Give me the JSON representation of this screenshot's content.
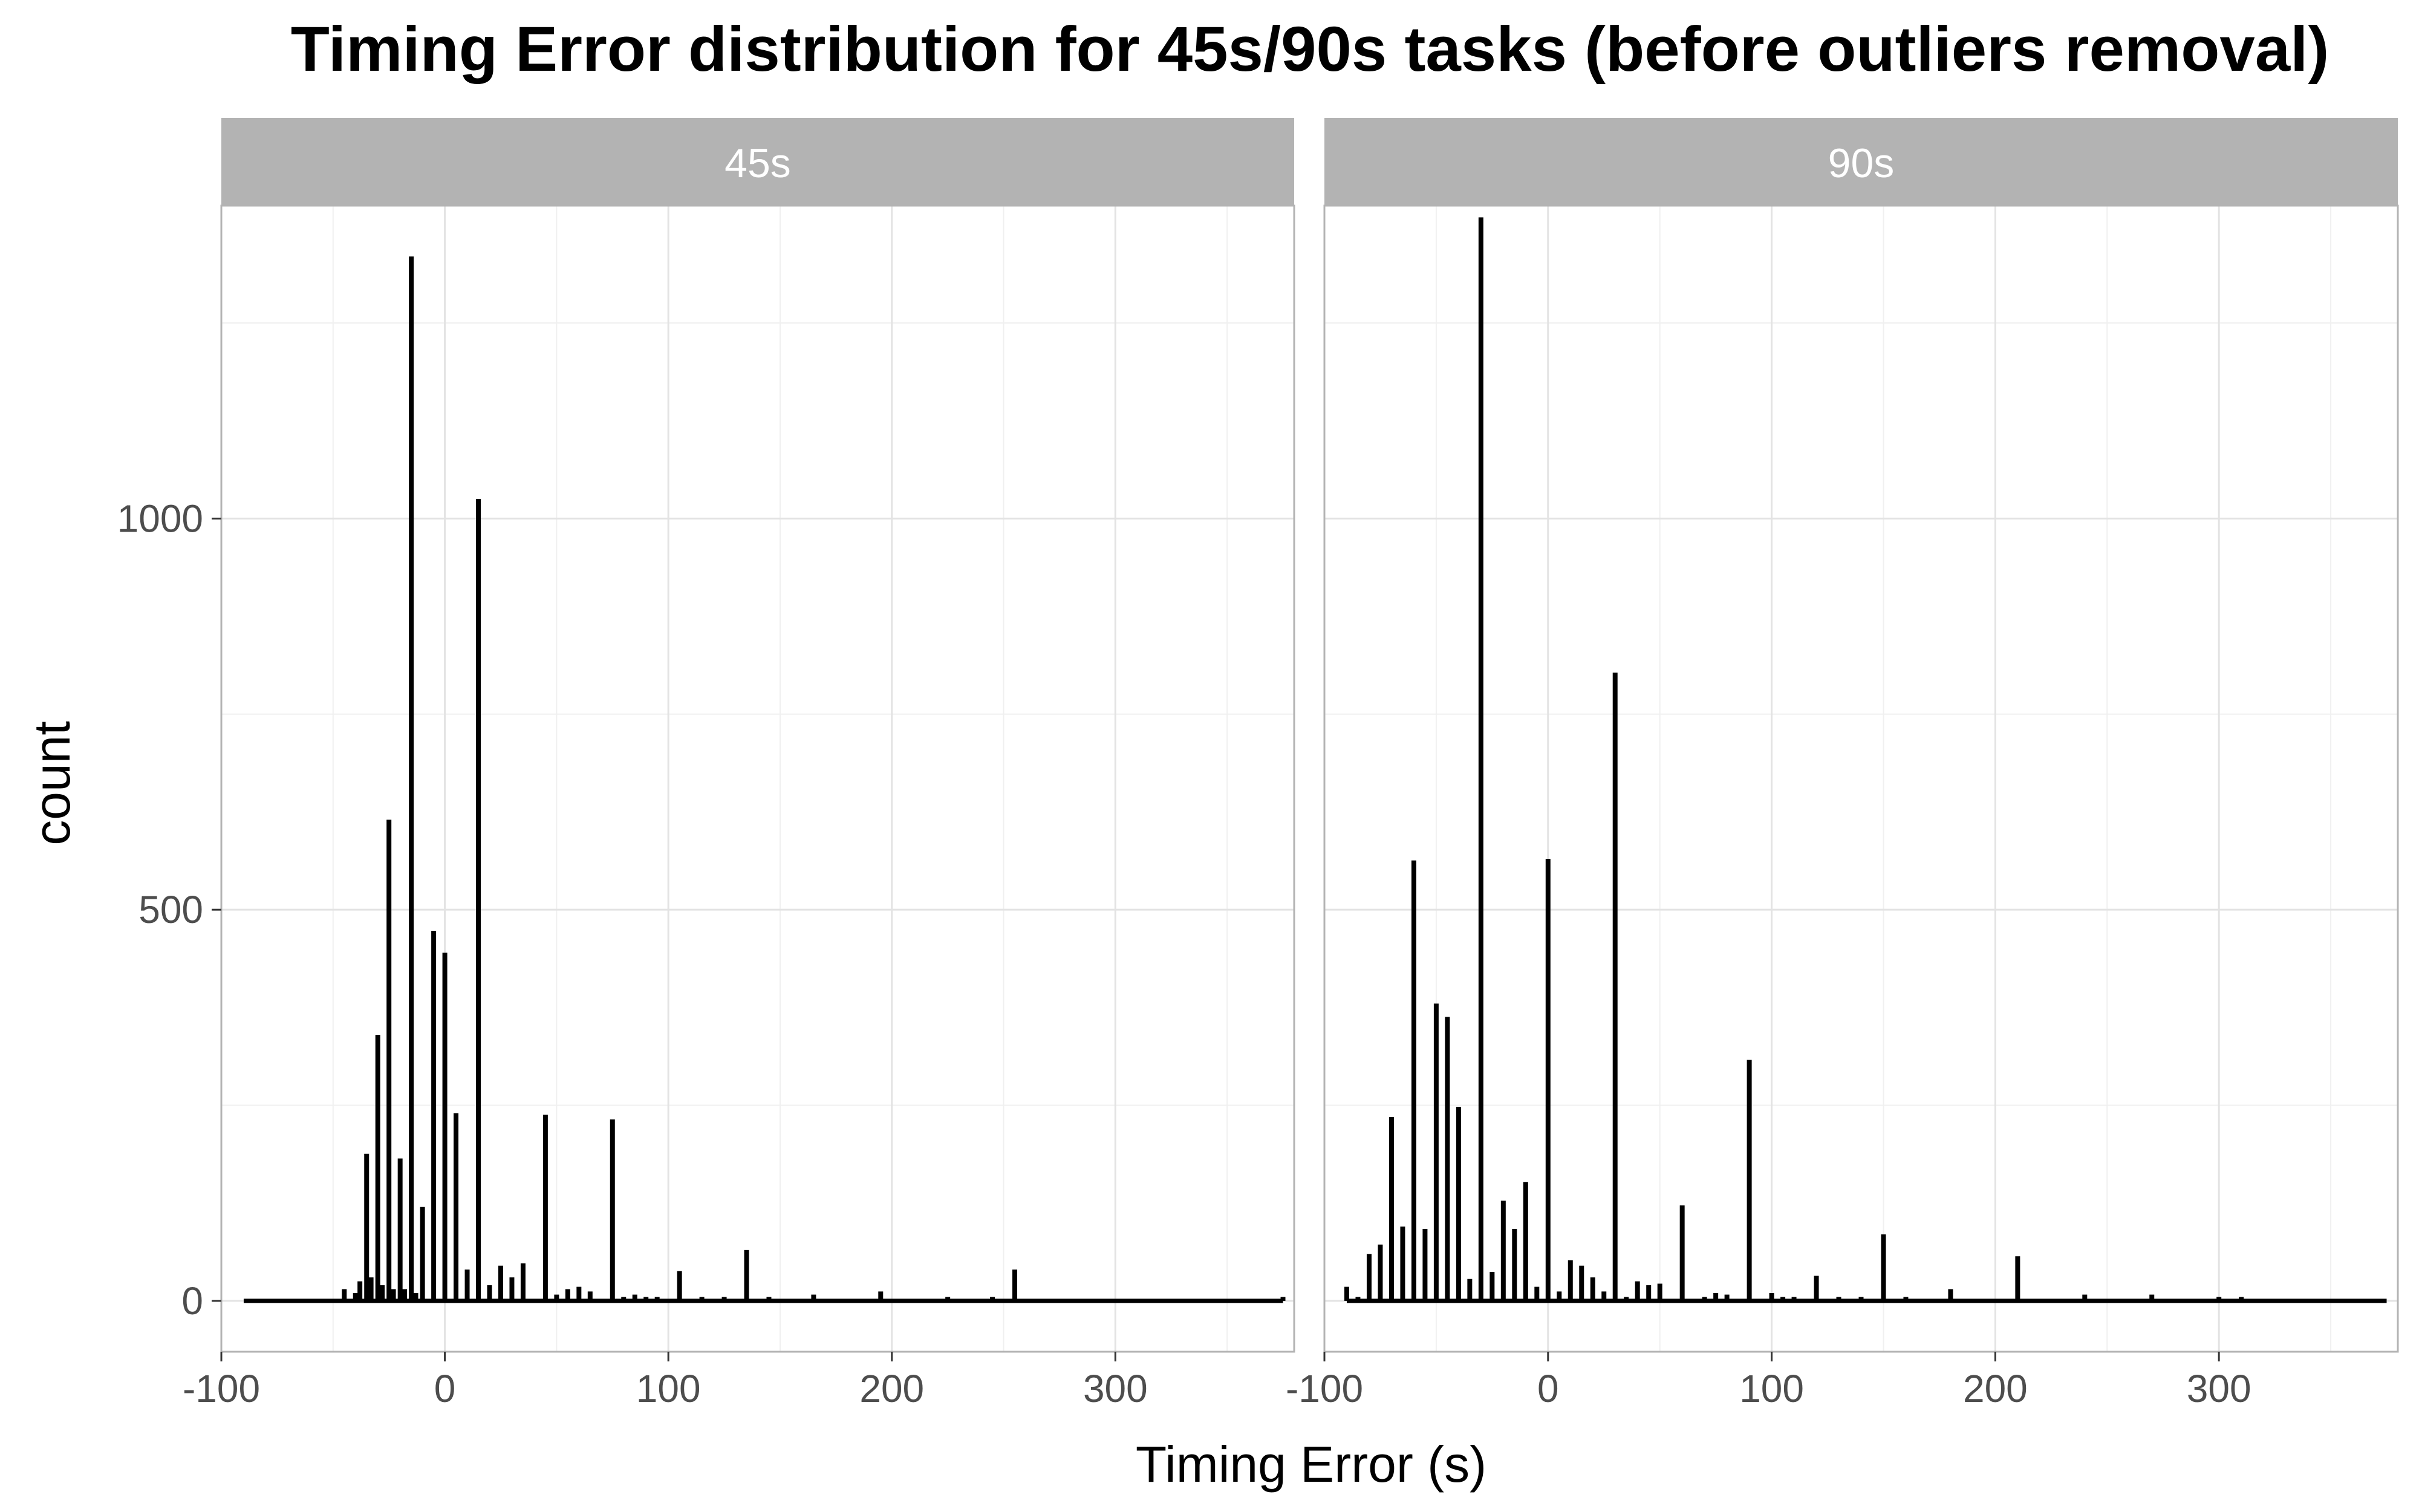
{
  "chart_data": {
    "type": "bar",
    "title": "Timing Error distribution for 45s/90s tasks (before outliers removal)",
    "xlabel": "Timing Error (s)",
    "ylabel": "count",
    "xlim": [
      -100,
      380
    ],
    "ylim": [
      -65,
      1400
    ],
    "x_ticks": [
      -100,
      0,
      100,
      200,
      300
    ],
    "x_tick_labels": [
      "-100",
      "0",
      "100",
      "200",
      "300"
    ],
    "y_ticks": [
      0,
      500,
      1000
    ],
    "y_tick_labels": [
      "0",
      "500",
      "1000"
    ],
    "grid": true,
    "baseline_range": [
      -90,
      375
    ],
    "facets": [
      {
        "label": "45s",
        "bars": [
          {
            "x": -45,
            "y": 15
          },
          {
            "x": -40,
            "y": 10
          },
          {
            "x": -38,
            "y": 25
          },
          {
            "x": -35,
            "y": 188
          },
          {
            "x": -33,
            "y": 30
          },
          {
            "x": -30,
            "y": 340
          },
          {
            "x": -28,
            "y": 20
          },
          {
            "x": -25,
            "y": 615
          },
          {
            "x": -23,
            "y": 15
          },
          {
            "x": -20,
            "y": 182
          },
          {
            "x": -18,
            "y": 15
          },
          {
            "x": -15,
            "y": 1335
          },
          {
            "x": -13,
            "y": 10
          },
          {
            "x": -10,
            "y": 120
          },
          {
            "x": -5,
            "y": 473
          },
          {
            "x": 0,
            "y": 445
          },
          {
            "x": 5,
            "y": 240
          },
          {
            "x": 10,
            "y": 40
          },
          {
            "x": 15,
            "y": 1025
          },
          {
            "x": 20,
            "y": 20
          },
          {
            "x": 25,
            "y": 45
          },
          {
            "x": 30,
            "y": 30
          },
          {
            "x": 35,
            "y": 48
          },
          {
            "x": 45,
            "y": 238
          },
          {
            "x": 50,
            "y": 8
          },
          {
            "x": 55,
            "y": 15
          },
          {
            "x": 60,
            "y": 18
          },
          {
            "x": 65,
            "y": 12
          },
          {
            "x": 75,
            "y": 232
          },
          {
            "x": 80,
            "y": 5
          },
          {
            "x": 85,
            "y": 8
          },
          {
            "x": 90,
            "y": 5
          },
          {
            "x": 95,
            "y": 5
          },
          {
            "x": 105,
            "y": 38
          },
          {
            "x": 115,
            "y": 5
          },
          {
            "x": 125,
            "y": 5
          },
          {
            "x": 135,
            "y": 65
          },
          {
            "x": 145,
            "y": 5
          },
          {
            "x": 165,
            "y": 8
          },
          {
            "x": 195,
            "y": 12
          },
          {
            "x": 225,
            "y": 5
          },
          {
            "x": 245,
            "y": 5
          },
          {
            "x": 255,
            "y": 40
          },
          {
            "x": 375,
            "y": 5
          }
        ]
      },
      {
        "label": "90s",
        "bars": [
          {
            "x": -90,
            "y": 18
          },
          {
            "x": -85,
            "y": 5
          },
          {
            "x": -80,
            "y": 60
          },
          {
            "x": -75,
            "y": 72
          },
          {
            "x": -70,
            "y": 235
          },
          {
            "x": -65,
            "y": 95
          },
          {
            "x": -60,
            "y": 563
          },
          {
            "x": -55,
            "y": 92
          },
          {
            "x": -50,
            "y": 380
          },
          {
            "x": -45,
            "y": 363
          },
          {
            "x": -40,
            "y": 248
          },
          {
            "x": -35,
            "y": 28
          },
          {
            "x": -30,
            "y": 1385
          },
          {
            "x": -25,
            "y": 37
          },
          {
            "x": -20,
            "y": 128
          },
          {
            "x": -15,
            "y": 92
          },
          {
            "x": -10,
            "y": 152
          },
          {
            "x": -5,
            "y": 18
          },
          {
            "x": 0,
            "y": 565
          },
          {
            "x": 5,
            "y": 12
          },
          {
            "x": 10,
            "y": 52
          },
          {
            "x": 15,
            "y": 45
          },
          {
            "x": 20,
            "y": 30
          },
          {
            "x": 25,
            "y": 12
          },
          {
            "x": 30,
            "y": 803
          },
          {
            "x": 35,
            "y": 5
          },
          {
            "x": 40,
            "y": 25
          },
          {
            "x": 45,
            "y": 20
          },
          {
            "x": 50,
            "y": 22
          },
          {
            "x": 60,
            "y": 122
          },
          {
            "x": 70,
            "y": 5
          },
          {
            "x": 75,
            "y": 10
          },
          {
            "x": 80,
            "y": 8
          },
          {
            "x": 90,
            "y": 308
          },
          {
            "x": 100,
            "y": 10
          },
          {
            "x": 105,
            "y": 5
          },
          {
            "x": 110,
            "y": 5
          },
          {
            "x": 120,
            "y": 32
          },
          {
            "x": 130,
            "y": 5
          },
          {
            "x": 140,
            "y": 5
          },
          {
            "x": 150,
            "y": 85
          },
          {
            "x": 160,
            "y": 5
          },
          {
            "x": 180,
            "y": 15
          },
          {
            "x": 210,
            "y": 57
          },
          {
            "x": 240,
            "y": 8
          },
          {
            "x": 270,
            "y": 8
          },
          {
            "x": 300,
            "y": 5
          },
          {
            "x": 310,
            "y": 5
          }
        ]
      }
    ]
  }
}
